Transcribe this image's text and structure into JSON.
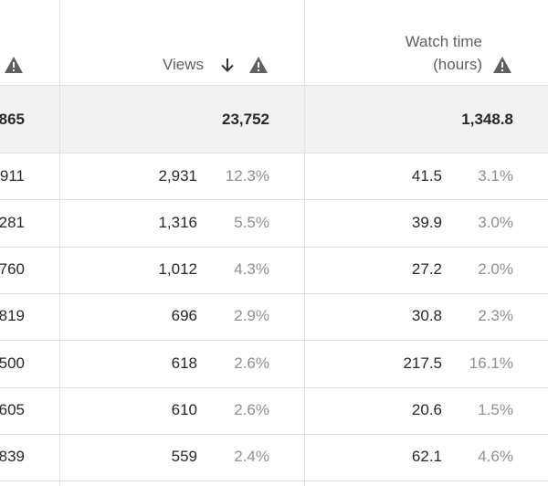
{
  "table": {
    "headers": {
      "views": "Views",
      "watch_time_line1": "Watch time",
      "watch_time_line2": "(hours)"
    },
    "total": {
      "first": "865",
      "views": "23,752",
      "watch_time": "1,348.8"
    },
    "rows": [
      [
        "911",
        "2,931",
        "12.3%",
        "41.5",
        "3.1%"
      ],
      [
        "281",
        "1,316",
        "5.5%",
        "39.9",
        "3.0%"
      ],
      [
        "760",
        "1,012",
        "4.3%",
        "27.2",
        "2.0%"
      ],
      [
        "819",
        "696",
        "2.9%",
        "30.8",
        "2.3%"
      ],
      [
        "500",
        "618",
        "2.6%",
        "217.5",
        "16.1%"
      ],
      [
        "605",
        "610",
        "2.6%",
        "20.6",
        "1.5%"
      ],
      [
        "839",
        "559",
        "2.4%",
        "62.1",
        "4.6%"
      ]
    ]
  }
}
